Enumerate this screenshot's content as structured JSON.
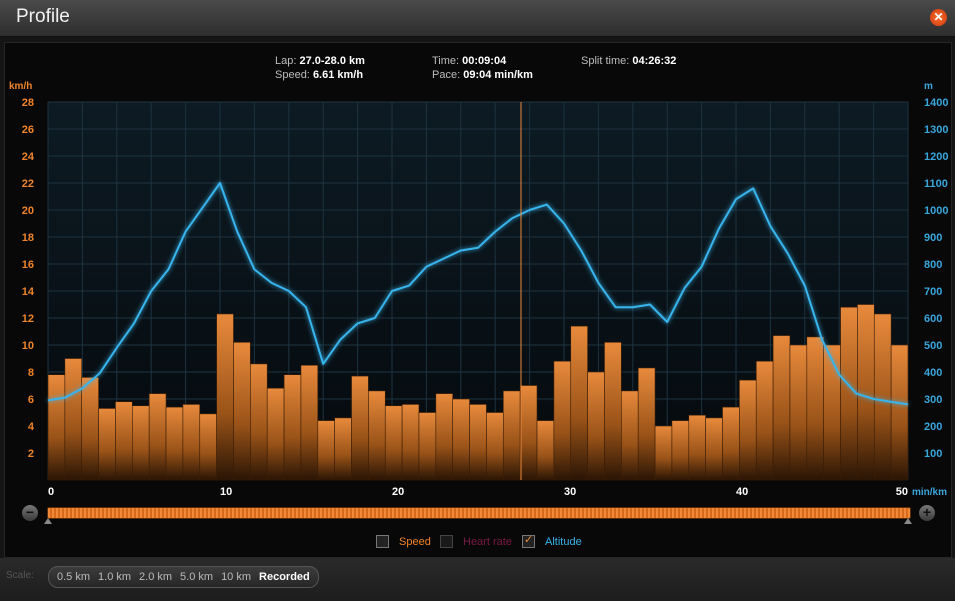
{
  "window": {
    "title": "Profile",
    "close_icon": "close-icon"
  },
  "stats": {
    "lap_label": "Lap:",
    "lap_value": "27.0-28.0 km",
    "speed_label": "Speed:",
    "speed_value": "6.61 km/h",
    "time_label": "Time:",
    "time_value": "00:09:04",
    "pace_label": "Pace:",
    "pace_value": "09:04 min/km",
    "split_label": "Split time:",
    "split_value": "04:26:32"
  },
  "axes": {
    "left_unit": "km/h",
    "right_unit": "m",
    "x_unit": "min/km"
  },
  "legend": {
    "speed": "Speed",
    "heart_rate": "Heart rate",
    "altitude": "Altitude"
  },
  "scale": {
    "label": "Scale:",
    "options": [
      "0.5 km",
      "1.0 km",
      "2.0 km",
      "5.0 km",
      "10 km",
      "Recorded"
    ],
    "active": "Recorded"
  },
  "colors": {
    "speed": "#f08a3a",
    "altitude": "#39b4ec",
    "heart_rate": "#8a1a4a",
    "cursor": "#f08a3a",
    "left_ticks": "#f0842a",
    "right_ticks": "#3aa6dc"
  },
  "chart_data": {
    "type": "bar",
    "x_range": [
      0,
      50
    ],
    "x_ticks": [
      0,
      10,
      20,
      30,
      40,
      50
    ],
    "cursor_x": 27.5,
    "speed_axis": {
      "label": "km/h",
      "ylim": [
        0,
        28
      ],
      "ticks": [
        2,
        4,
        6,
        8,
        10,
        12,
        14,
        16,
        18,
        20,
        22,
        24,
        26,
        28
      ]
    },
    "altitude_axis": {
      "label": "m",
      "ylim": [
        0,
        1400
      ],
      "ticks": [
        100,
        200,
        300,
        400,
        500,
        600,
        700,
        800,
        900,
        1000,
        1100,
        1200,
        1300,
        1400
      ]
    },
    "series": [
      {
        "name": "Speed",
        "type": "bar",
        "values": [
          7.8,
          9.0,
          7.6,
          5.3,
          5.8,
          5.5,
          6.4,
          5.4,
          5.6,
          4.9,
          12.3,
          10.2,
          8.6,
          6.8,
          7.8,
          8.5,
          4.4,
          4.6,
          7.7,
          6.6,
          5.5,
          5.6,
          5.0,
          6.4,
          6.0,
          5.6,
          5.0,
          6.6,
          7.0,
          4.4,
          8.8,
          11.4,
          8.0,
          10.2,
          6.6,
          8.3,
          4.0,
          4.4,
          4.8,
          4.6,
          5.4,
          7.4,
          8.8,
          10.7,
          10.0,
          10.6,
          10.0,
          12.8,
          13.0,
          12.3,
          10.0
        ]
      },
      {
        "name": "Altitude",
        "type": "line",
        "x": [
          0,
          1,
          2,
          3,
          4,
          5,
          6,
          7,
          8,
          9,
          10,
          11,
          12,
          13,
          14,
          15,
          16,
          17,
          18,
          19,
          20,
          21,
          22,
          23,
          24,
          25,
          26,
          27,
          28,
          29,
          30,
          31,
          32,
          33,
          34,
          35,
          36,
          37,
          38,
          39,
          40,
          41,
          42,
          43,
          44,
          45,
          46,
          47,
          48,
          49,
          50
        ],
        "values": [
          295,
          305,
          340,
          395,
          490,
          580,
          700,
          780,
          920,
          1010,
          1100,
          920,
          780,
          730,
          700,
          640,
          430,
          520,
          580,
          600,
          700,
          720,
          790,
          820,
          850,
          860,
          920,
          970,
          1000,
          1020,
          950,
          850,
          730,
          640,
          640,
          650,
          585,
          710,
          790,
          930,
          1040,
          1080,
          940,
          840,
          720,
          520,
          390,
          320,
          300,
          290,
          280
        ]
      }
    ]
  }
}
